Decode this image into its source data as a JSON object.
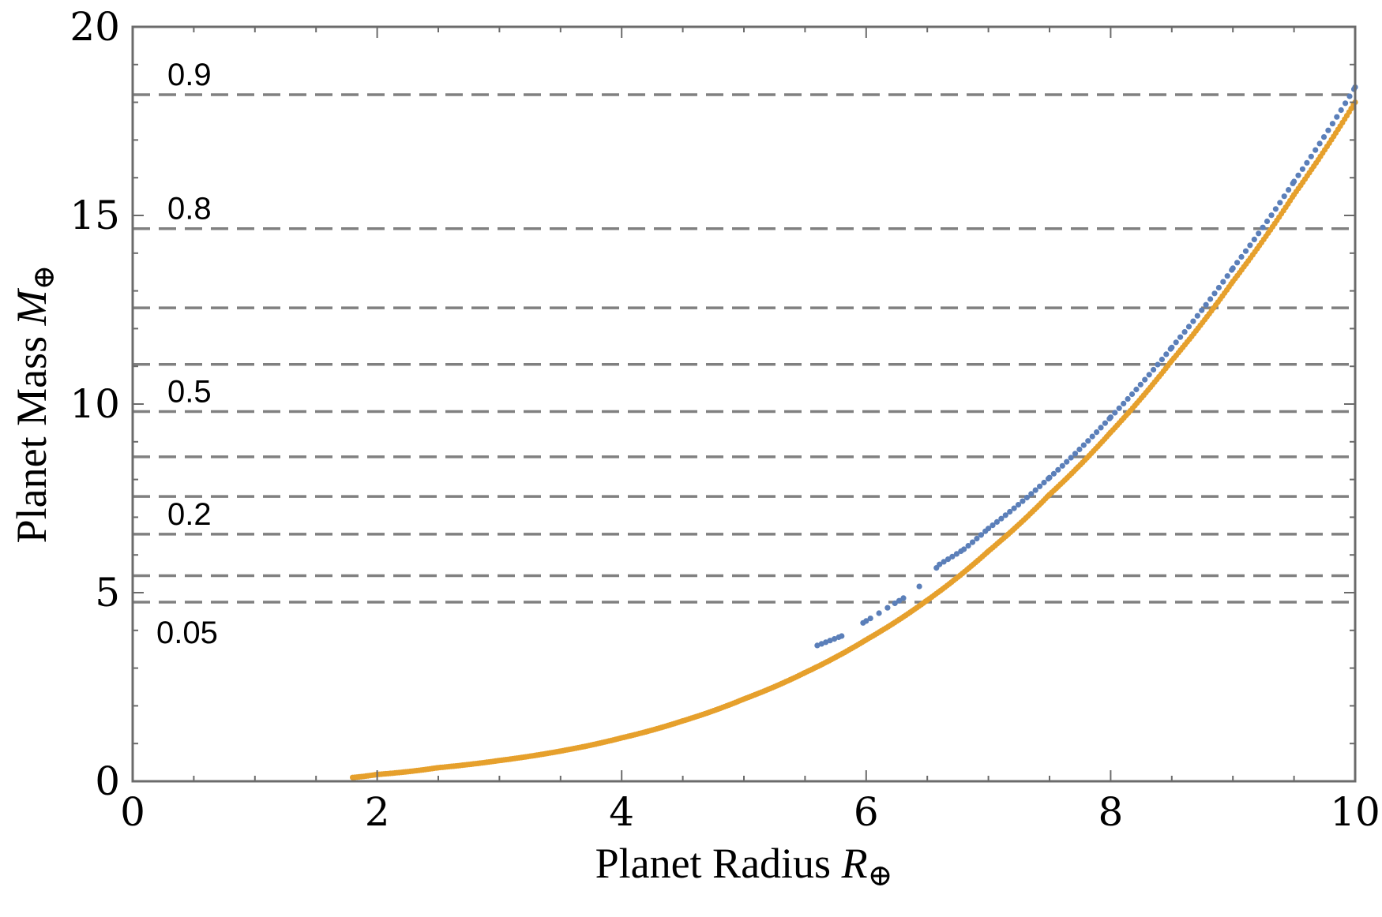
{
  "chart_data": {
    "type": "scatter",
    "xlabel": "Planet Radius",
    "xlabel_symbol": "R",
    "xlabel_sub": "⊕",
    "ylabel": "Planet Mass",
    "ylabel_symbol": "M",
    "ylabel_sub": "⊕",
    "xlim": [
      0,
      10
    ],
    "ylim": [
      0,
      20
    ],
    "x_ticks": [
      0,
      2,
      4,
      6,
      8,
      10
    ],
    "y_ticks": [
      0,
      5,
      10,
      15,
      20
    ],
    "grid": false,
    "reference_lines": [
      {
        "y": 18.2,
        "label": "0.9"
      },
      {
        "y": 14.65,
        "label": "0.8"
      },
      {
        "y": 12.55,
        "label": ""
      },
      {
        "y": 11.05,
        "label": ""
      },
      {
        "y": 9.8,
        "label": "0.5"
      },
      {
        "y": 8.6,
        "label": ""
      },
      {
        "y": 7.55,
        "label": ""
      },
      {
        "y": 6.55,
        "label": "0.2"
      },
      {
        "y": 5.45,
        "label": ""
      },
      {
        "y": 4.75,
        "label": "0.05"
      }
    ],
    "series": [
      {
        "color": "#e6a02c",
        "curve": "power-law",
        "x": [
          1.8,
          2.0,
          2.5,
          3.0,
          3.5,
          4.0,
          4.5,
          5.0,
          5.5,
          6.0,
          6.5,
          7.0,
          7.5,
          8.0,
          8.5,
          9.0,
          9.5,
          10.0
        ],
        "y": [
          0.1,
          0.18,
          0.36,
          0.55,
          0.8,
          1.15,
          1.6,
          2.18,
          2.88,
          3.75,
          4.8,
          6.1,
          7.6,
          9.25,
          11.15,
          13.25,
          15.55,
          18.0
        ]
      },
      {
        "color": "#5b7fb9",
        "curve": "power-law",
        "x": [
          5.6,
          5.8,
          6.0,
          6.2,
          6.4,
          6.6,
          6.8,
          7.0,
          7.5,
          8.0,
          8.5,
          9.0,
          9.5,
          10.0
        ],
        "y": [
          3.6,
          3.85,
          4.25,
          4.65,
          5.05,
          5.75,
          6.15,
          6.7,
          8.05,
          9.65,
          11.5,
          13.6,
          15.9,
          18.4
        ]
      }
    ]
  }
}
